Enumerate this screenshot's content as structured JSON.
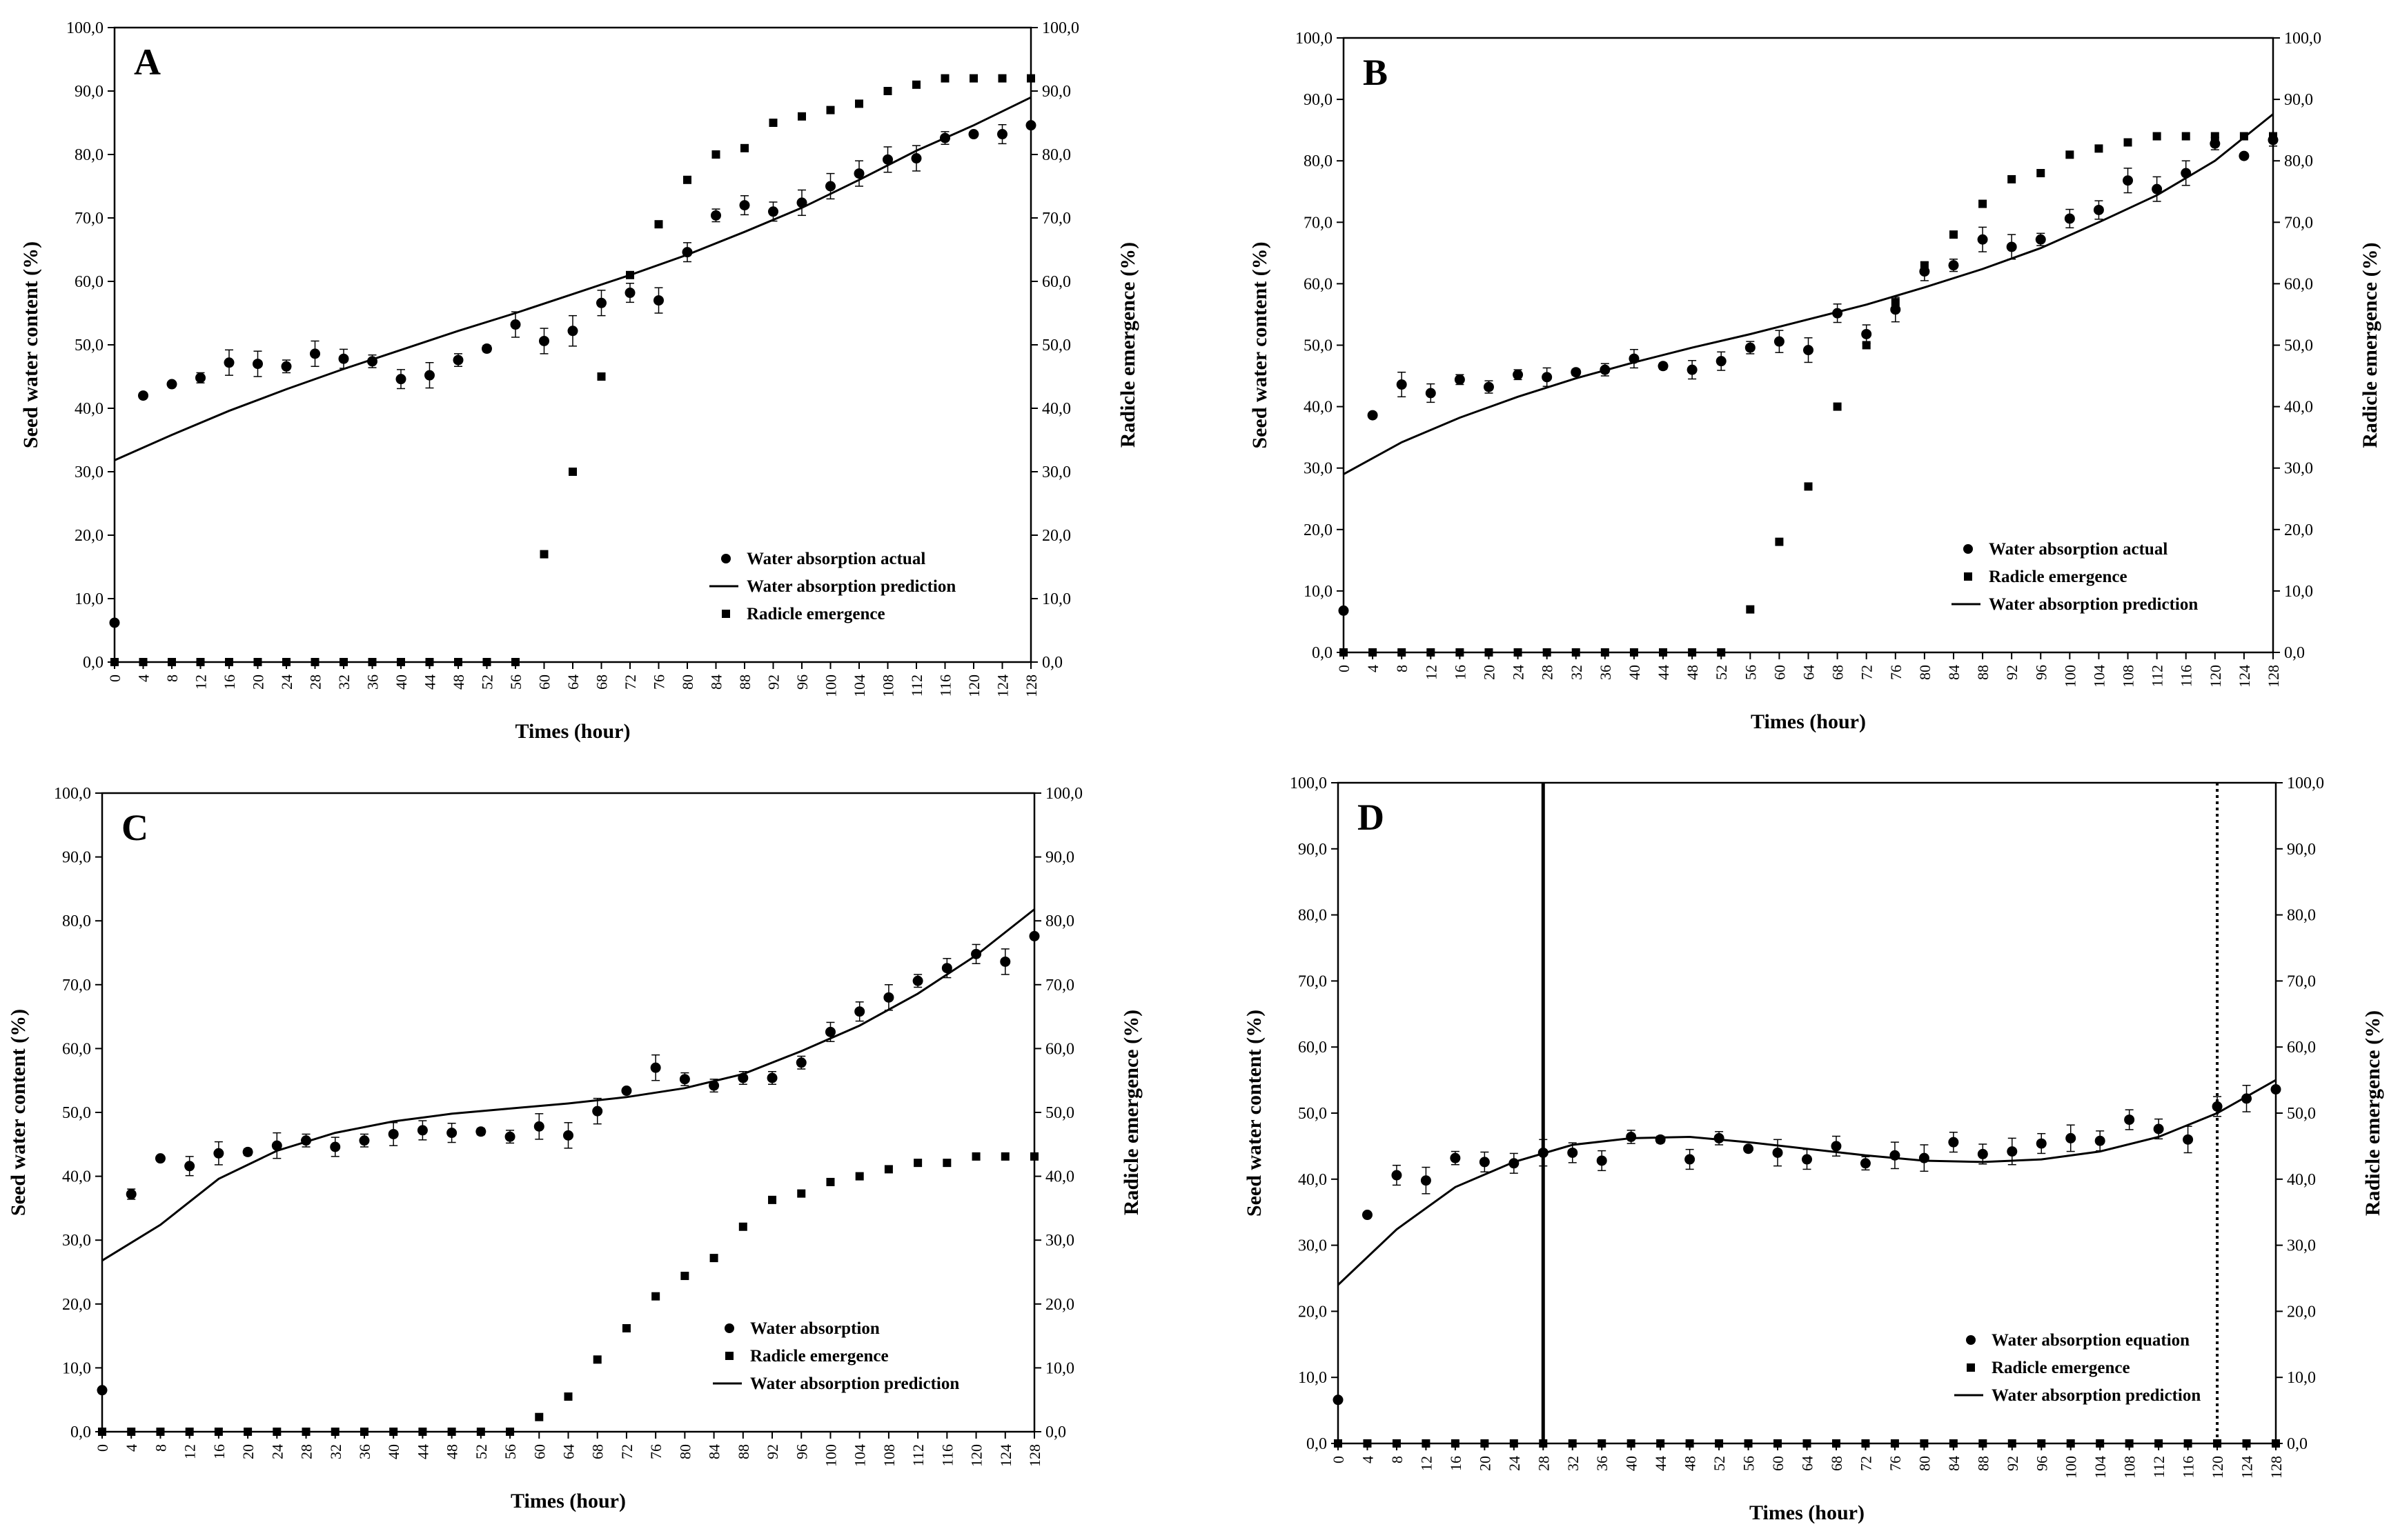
{
  "figure": {
    "description_free": true
  },
  "chart_data": [
    {
      "panel": "A",
      "type": "scatter",
      "xlabel": "Times (hour)",
      "ylabel": "Seed water content (%)",
      "y2label": "Radicle emergence (%)",
      "xlim": [
        0,
        128
      ],
      "ylim": [
        0,
        100
      ],
      "y2lim": [
        0,
        100
      ],
      "x_ticks": [
        0,
        4,
        8,
        12,
        16,
        20,
        24,
        28,
        32,
        36,
        40,
        44,
        48,
        52,
        56,
        60,
        64,
        68,
        72,
        76,
        80,
        84,
        88,
        92,
        96,
        100,
        104,
        108,
        112,
        116,
        120,
        124,
        128
      ],
      "y_ticks": [
        "0,0",
        "10,0",
        "20,0",
        "30,0",
        "40,0",
        "50,0",
        "60,0",
        "70,0",
        "80,0",
        "90,0",
        "100,0"
      ],
      "legend_position": "bottom-right",
      "legend": [
        "Water absorption actual",
        "Water absorption prediction",
        "Radicle emergence"
      ],
      "series": [
        {
          "name": "Water absorption actual",
          "marker": "circle",
          "x": [
            0,
            4,
            8,
            12,
            16,
            20,
            24,
            28,
            32,
            36,
            40,
            44,
            48,
            52,
            56,
            60,
            64,
            68,
            72,
            76,
            80,
            84,
            88,
            92,
            96,
            100,
            104,
            108,
            112,
            116,
            120,
            124,
            128
          ],
          "y": [
            6.2,
            42,
            43.8,
            44.8,
            47.2,
            47,
            46.6,
            48.6,
            47.8,
            47.4,
            44.6,
            45.2,
            47.6,
            49.4,
            53.2,
            50.6,
            52.2,
            56.6,
            58.2,
            57,
            64.6,
            70.4,
            72,
            71,
            72.4,
            75,
            77,
            79.2,
            79.4,
            82.6,
            83.2,
            83.2,
            84.6
          ],
          "err": [
            0,
            0,
            0,
            0.8,
            2,
            2,
            1,
            2,
            1.5,
            1,
            1.5,
            2,
            1,
            0.5,
            2,
            2,
            2.4,
            2,
            1.5,
            2,
            1.5,
            1,
            1.5,
            1.5,
            2,
            2,
            2,
            2,
            2,
            1,
            0,
            1.5,
            0
          ]
        },
        {
          "name": "Water absorption prediction",
          "type": "line",
          "x": [
            0,
            8,
            16,
            24,
            32,
            40,
            48,
            56,
            64,
            72,
            80,
            88,
            96,
            104,
            112,
            120,
            128
          ],
          "y": [
            31.8,
            35.8,
            39.6,
            43,
            46.2,
            49.2,
            52.2,
            55,
            58,
            61,
            64.2,
            67.8,
            71.6,
            76,
            80.6,
            84.6,
            89
          ]
        },
        {
          "name": "Radicle emergence",
          "marker": "square",
          "axis": "right",
          "x": [
            0,
            4,
            8,
            12,
            16,
            20,
            24,
            28,
            32,
            36,
            40,
            44,
            48,
            52,
            56,
            60,
            64,
            68,
            72,
            76,
            80,
            84,
            88,
            92,
            96,
            100,
            104,
            108,
            112,
            116,
            120,
            124,
            128
          ],
          "y": [
            0,
            0,
            0,
            0,
            0,
            0,
            0,
            0,
            0,
            0,
            0,
            0,
            0,
            0,
            0,
            17,
            30,
            45,
            61,
            69,
            76,
            80,
            81,
            85,
            86,
            87,
            88,
            90,
            91,
            92,
            92,
            92,
            92
          ]
        }
      ]
    },
    {
      "panel": "B",
      "type": "scatter",
      "xlabel": "Times (hour)",
      "ylabel": "Seed water content (%)",
      "y2label": "Radicle emergence (%)",
      "xlim": [
        0,
        128
      ],
      "ylim": [
        0,
        100
      ],
      "y2lim": [
        0,
        100
      ],
      "x_ticks": [
        0,
        4,
        8,
        12,
        16,
        20,
        24,
        28,
        32,
        36,
        40,
        44,
        48,
        52,
        56,
        60,
        64,
        68,
        72,
        76,
        80,
        84,
        88,
        92,
        96,
        100,
        104,
        108,
        112,
        116,
        120,
        124,
        128
      ],
      "y_ticks": [
        "0,0",
        "10,0",
        "20,0",
        "30,0",
        "40,0",
        "50,0",
        "60,0",
        "70,0",
        "80,0",
        "90,0",
        "100,0"
      ],
      "legend_position": "bottom-right",
      "legend": [
        "Water absorption actual",
        "Radicle emergence",
        "Water absorption prediction"
      ],
      "series": [
        {
          "name": "Water absorption actual",
          "marker": "circle",
          "x": [
            0,
            4,
            8,
            12,
            16,
            20,
            24,
            28,
            32,
            36,
            40,
            44,
            48,
            52,
            56,
            60,
            64,
            68,
            72,
            76,
            80,
            84,
            88,
            92,
            96,
            100,
            104,
            108,
            112,
            116,
            120,
            124,
            128
          ],
          "y": [
            6.8,
            38.6,
            43.6,
            42.2,
            44.4,
            43.2,
            45.2,
            44.8,
            45.6,
            46,
            47.8,
            46.6,
            46,
            47.4,
            49.6,
            50.6,
            49.2,
            55.2,
            51.8,
            55.8,
            62,
            63,
            67.2,
            66,
            67.2,
            70.6,
            72,
            76.8,
            75.4,
            78,
            82.8,
            80.8,
            83.4
          ],
          "err": [
            0,
            0,
            2,
            1.5,
            0.8,
            1,
            0.8,
            1.5,
            0.5,
            1,
            1.5,
            0.5,
            1.5,
            1.5,
            1,
            1.8,
            2,
            1.5,
            1.5,
            2,
            1.5,
            1,
            2,
            2,
            1,
            1.5,
            1.5,
            2,
            2,
            2,
            1,
            0,
            1
          ]
        },
        {
          "name": "Radicle emergence",
          "marker": "square",
          "axis": "right",
          "x": [
            0,
            4,
            8,
            12,
            16,
            20,
            24,
            28,
            32,
            36,
            40,
            44,
            48,
            52,
            56,
            60,
            64,
            68,
            72,
            76,
            80,
            84,
            88,
            92,
            96,
            100,
            104,
            108,
            112,
            116,
            120,
            124,
            128
          ],
          "y": [
            0,
            0,
            0,
            0,
            0,
            0,
            0,
            0,
            0,
            0,
            0,
            0,
            0,
            0,
            7,
            18,
            27,
            40,
            50,
            57,
            63,
            68,
            73,
            77,
            78,
            81,
            82,
            83,
            84,
            84,
            84,
            84,
            84
          ]
        },
        {
          "name": "Water absorption prediction",
          "type": "line",
          "x": [
            0,
            8,
            16,
            24,
            32,
            40,
            48,
            56,
            64,
            72,
            80,
            88,
            96,
            104,
            112,
            120,
            128
          ],
          "y": [
            29,
            34.2,
            38.2,
            41.6,
            44.6,
            47.2,
            49.6,
            51.8,
            54.2,
            56.6,
            59.4,
            62.4,
            65.8,
            70,
            74.4,
            80,
            87.6
          ]
        }
      ]
    },
    {
      "panel": "C",
      "type": "scatter",
      "xlabel": "Times (hour)",
      "ylabel": "Seed water content (%)",
      "y2label": "Radicle emergence (%)",
      "xlim": [
        0,
        128
      ],
      "ylim": [
        0,
        100
      ],
      "y2lim": [
        0,
        100
      ],
      "x_ticks": [
        0,
        4,
        8,
        12,
        16,
        20,
        24,
        28,
        32,
        36,
        40,
        44,
        48,
        52,
        56,
        60,
        64,
        68,
        72,
        76,
        80,
        84,
        88,
        92,
        96,
        100,
        104,
        108,
        112,
        116,
        120,
        124,
        128
      ],
      "y_ticks": [
        "0,0",
        "10,0",
        "20,0",
        "30,0",
        "40,0",
        "50,0",
        "60,0",
        "70,0",
        "80,0",
        "90,0",
        "100,0"
      ],
      "legend_position": "bottom-right",
      "legend": [
        "Water absorption",
        "Radicle emergence",
        "Water absorption prediction"
      ],
      "series": [
        {
          "name": "Water absorption",
          "marker": "circle",
          "x": [
            0,
            4,
            8,
            12,
            16,
            20,
            24,
            28,
            32,
            36,
            40,
            44,
            48,
            52,
            56,
            60,
            64,
            68,
            72,
            76,
            80,
            84,
            88,
            92,
            96,
            100,
            104,
            108,
            112,
            116,
            120,
            124,
            128
          ],
          "y": [
            6.5,
            37.2,
            42.8,
            41.6,
            43.6,
            43.8,
            44.8,
            45.6,
            44.6,
            45.6,
            46.6,
            47.2,
            46.8,
            47,
            46.2,
            47.8,
            46.4,
            50.2,
            53.4,
            57,
            55.2,
            54.2,
            55.4,
            55.4,
            57.8,
            62.6,
            65.8,
            68,
            70.6,
            72.6,
            74.8,
            73.6,
            77.6
          ],
          "err": [
            0,
            0.8,
            0,
            1.5,
            1.8,
            0.5,
            2,
            1,
            1.5,
            1,
            1.8,
            1.5,
            1.5,
            0.5,
            1,
            2,
            2,
            2,
            0,
            2,
            1,
            1,
            1,
            1,
            1,
            1.5,
            1.5,
            2,
            1,
            1.5,
            1.5,
            2,
            0
          ]
        },
        {
          "name": "Radicle emergence",
          "marker": "square",
          "axis": "right",
          "x": [
            0,
            4,
            8,
            12,
            16,
            20,
            24,
            28,
            32,
            36,
            40,
            44,
            48,
            52,
            56,
            60,
            64,
            68,
            72,
            76,
            80,
            84,
            88,
            92,
            96,
            100,
            104,
            108,
            112,
            116,
            120,
            124,
            128
          ],
          "y": [
            0,
            0,
            0,
            0,
            0,
            0,
            0,
            0,
            0,
            0,
            0,
            0,
            0,
            0,
            0,
            2.3,
            5.5,
            11.3,
            16.2,
            21.2,
            24.4,
            27.2,
            32.1,
            36.3,
            37.3,
            39.1,
            40,
            41.1,
            42.1,
            42.1,
            43.1,
            43.1,
            43.1
          ]
        },
        {
          "name": "Water absorption prediction",
          "type": "line",
          "x": [
            0,
            8,
            16,
            24,
            32,
            40,
            48,
            56,
            64,
            72,
            80,
            88,
            96,
            104,
            112,
            120,
            128
          ],
          "y": [
            26.8,
            32.4,
            39.6,
            44,
            46.8,
            48.6,
            49.8,
            50.6,
            51.4,
            52.4,
            53.8,
            56,
            59.6,
            63.6,
            68.6,
            74.6,
            81.8
          ]
        }
      ]
    },
    {
      "panel": "D",
      "type": "scatter",
      "xlabel": "Times (hour)",
      "ylabel": "Seed water content (%)",
      "y2label": "Radicle emergence (%)",
      "xlim": [
        0,
        128
      ],
      "ylim": [
        0,
        100
      ],
      "y2lim": [
        0,
        100
      ],
      "x_ticks": [
        0,
        4,
        8,
        12,
        16,
        20,
        24,
        28,
        32,
        36,
        40,
        44,
        48,
        52,
        56,
        60,
        64,
        68,
        72,
        76,
        80,
        84,
        88,
        92,
        96,
        100,
        104,
        108,
        112,
        116,
        120,
        124,
        128
      ],
      "y_ticks": [
        "0,0",
        "10,0",
        "20,0",
        "30,0",
        "40,0",
        "50,0",
        "60,0",
        "70,0",
        "80,0",
        "90,0",
        "100,0"
      ],
      "legend_position": "bottom-right",
      "legend": [
        "Water absorption equation",
        "Radicle emergence",
        "Water absorption prediction"
      ],
      "vertical_lines": [
        {
          "x": 28,
          "style": "solid"
        },
        {
          "x": 120,
          "style": "dotted"
        }
      ],
      "series": [
        {
          "name": "Water absorption equation",
          "marker": "circle",
          "x": [
            0,
            4,
            8,
            12,
            16,
            20,
            24,
            28,
            32,
            36,
            40,
            44,
            48,
            52,
            56,
            60,
            64,
            68,
            72,
            76,
            80,
            84,
            88,
            92,
            96,
            100,
            104,
            108,
            112,
            116,
            120,
            124,
            128
          ],
          "y": [
            6.6,
            34.6,
            40.6,
            39.8,
            43.2,
            42.6,
            42.4,
            44,
            44,
            42.8,
            46.4,
            46,
            43,
            46.2,
            44.6,
            44,
            43,
            45,
            42.4,
            43.6,
            43.2,
            45.6,
            43.8,
            44.2,
            45.4,
            46.2,
            45.8,
            49,
            47.6,
            46,
            51,
            52.2,
            53.6
          ],
          "err": [
            0,
            0,
            1.5,
            2,
            1,
            1.5,
            1.5,
            2,
            1.5,
            1.5,
            1,
            0.5,
            1.5,
            1,
            0,
            2,
            1.5,
            1.5,
            1,
            2,
            2,
            1.5,
            1.5,
            2,
            1.5,
            2,
            1.5,
            1.5,
            1.5,
            2,
            1.5,
            2,
            0
          ]
        },
        {
          "name": "Radicle emergence",
          "marker": "square",
          "axis": "right",
          "x": [
            0,
            4,
            8,
            12,
            16,
            20,
            24,
            28,
            32,
            36,
            40,
            44,
            48,
            52,
            56,
            60,
            64,
            68,
            72,
            76,
            80,
            84,
            88,
            92,
            96,
            100,
            104,
            108,
            112,
            116,
            120,
            124,
            128
          ],
          "y": [
            0,
            0,
            0,
            0,
            0,
            0,
            0,
            0,
            0,
            0,
            0,
            0,
            0,
            0,
            0,
            0,
            0,
            0,
            0,
            0,
            0,
            0,
            0,
            0,
            0,
            0,
            0,
            0,
            0,
            0,
            0,
            0,
            0
          ]
        },
        {
          "name": "Water absorption prediction",
          "type": "line",
          "x": [
            0,
            8,
            16,
            24,
            32,
            40,
            48,
            56,
            64,
            72,
            80,
            88,
            96,
            104,
            112,
            120,
            128
          ],
          "y": [
            24,
            32.4,
            38.8,
            42.6,
            45.2,
            46.2,
            46.4,
            45.6,
            44.6,
            43.6,
            42.8,
            42.6,
            43,
            44.2,
            46.4,
            50,
            55
          ]
        }
      ]
    }
  ]
}
